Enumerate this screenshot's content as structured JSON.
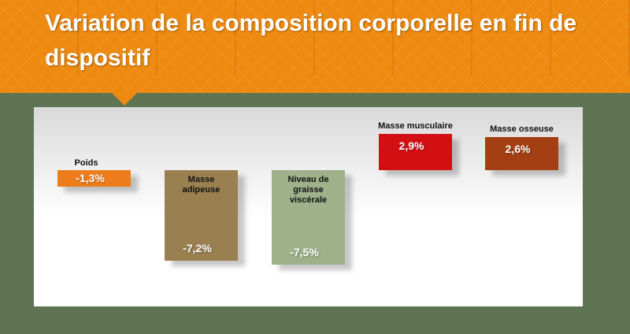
{
  "title": "Variation de la composition corporelle en fin de dispositif",
  "chart_data": {
    "type": "bar",
    "title": "Variation de la composition corporelle en fin de dispositif",
    "categories": [
      "Poids",
      "Masse adipeuse",
      "Niveau de graisse viscérale",
      "Masse musculaire",
      "Masse osseuse"
    ],
    "values": [
      -1.3,
      -7.2,
      -7.5,
      2.9,
      2.6
    ],
    "value_labels": [
      "-1,3%",
      "-7,2%",
      "-7,5%",
      "2,9%",
      "2,6%"
    ],
    "unit": "%",
    "colors": [
      "#ed7d1c",
      "#9a8050",
      "#9fb18a",
      "#d21014",
      "#a43f13"
    ],
    "grid": false,
    "legend": "none"
  }
}
